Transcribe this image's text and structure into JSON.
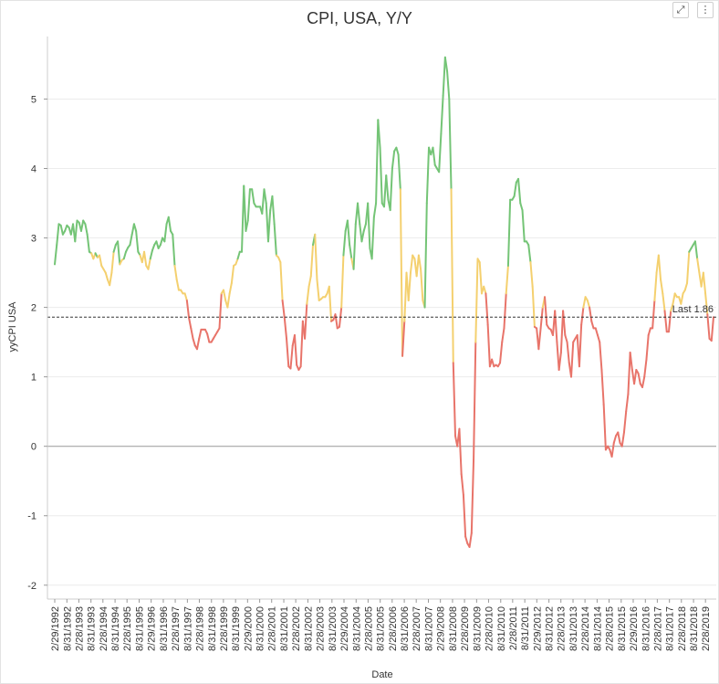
{
  "chart_data": {
    "type": "line",
    "title": "CPI, USA, Y/Y",
    "xlabel": "Date",
    "ylabel": "yyCPI USA",
    "ylim": [
      -2.2,
      5.9
    ],
    "yticks": [
      -2,
      -1,
      0,
      1,
      2,
      3,
      4,
      5
    ],
    "x_tick_labels": [
      "2/29/1992",
      "8/31/1992",
      "2/28/1993",
      "8/31/1993",
      "2/28/1994",
      "8/31/1994",
      "2/28/1995",
      "8/31/1995",
      "2/29/1996",
      "8/31/1996",
      "2/28/1997",
      "8/31/1997",
      "2/28/1998",
      "8/31/1998",
      "2/28/1999",
      "8/31/1999",
      "2/29/2000",
      "8/31/2000",
      "2/28/2001",
      "8/31/2001",
      "2/28/2002",
      "8/31/2002",
      "2/28/2003",
      "8/31/2003",
      "2/29/2004",
      "8/31/2004",
      "2/28/2005",
      "8/31/2005",
      "2/28/2006",
      "8/31/2006",
      "2/28/2007",
      "8/31/2007",
      "2/29/2008",
      "8/31/2008",
      "2/28/2009",
      "8/31/2009",
      "2/28/2010",
      "8/31/2010",
      "2/28/2011",
      "8/31/2011",
      "2/29/2012",
      "8/31/2012",
      "2/28/2013",
      "8/31/2013",
      "2/28/2014",
      "8/31/2014",
      "2/28/2015",
      "8/31/2015",
      "2/29/2016",
      "8/31/2016",
      "2/28/2017",
      "8/31/2017",
      "2/28/2018",
      "8/31/2018",
      "2/28/2019"
    ],
    "x_start": "1992-02-29",
    "x_end": "2019-06-30",
    "series": [
      {
        "values": [
          2.62,
          2.9,
          3.2,
          3.18,
          3.05,
          3.1,
          3.18,
          3.15,
          3.05,
          3.2,
          2.95,
          3.25,
          3.22,
          3.1,
          3.25,
          3.2,
          3.05,
          2.8,
          2.78,
          2.7,
          2.78,
          2.72,
          2.75,
          2.6,
          2.55,
          2.5,
          2.4,
          2.32,
          2.5,
          2.8,
          2.9,
          2.95,
          2.62,
          2.68,
          2.7,
          2.8,
          2.86,
          2.9,
          3.05,
          3.2,
          3.1,
          2.8,
          2.75,
          2.65,
          2.8,
          2.6,
          2.55,
          2.7,
          2.82,
          2.9,
          2.95,
          2.85,
          2.9,
          3.0,
          2.95,
          3.2,
          3.3,
          3.1,
          3.05,
          2.6,
          2.4,
          2.25,
          2.25,
          2.2,
          2.2,
          2.1,
          1.85,
          1.7,
          1.55,
          1.45,
          1.4,
          1.55,
          1.68,
          1.68,
          1.68,
          1.62,
          1.5,
          1.5,
          1.55,
          1.6,
          1.65,
          1.7,
          2.2,
          2.25,
          2.1,
          2.0,
          2.2,
          2.35,
          2.6,
          2.62,
          2.7,
          2.8,
          2.8,
          3.75,
          3.1,
          3.25,
          3.7,
          3.7,
          3.5,
          3.45,
          3.45,
          3.45,
          3.35,
          3.7,
          3.5,
          2.95,
          3.4,
          3.6,
          3.2,
          2.75,
          2.72,
          2.65,
          2.1,
          1.85,
          1.55,
          1.15,
          1.12,
          1.45,
          1.6,
          1.17,
          1.1,
          1.15,
          1.8,
          1.55,
          2.05,
          2.3,
          2.45,
          2.9,
          3.05,
          2.4,
          2.1,
          2.12,
          2.15,
          2.15,
          2.2,
          2.3,
          1.8,
          1.82,
          1.9,
          1.7,
          1.72,
          2.0,
          2.75,
          3.1,
          3.25,
          2.9,
          2.7,
          2.55,
          3.2,
          3.5,
          3.2,
          2.95,
          3.1,
          3.2,
          3.5,
          2.85,
          2.7,
          3.3,
          3.5,
          4.7,
          4.3,
          3.5,
          3.45,
          3.9,
          3.55,
          3.4,
          4.0,
          4.25,
          4.3,
          4.2,
          3.7,
          1.3,
          1.8,
          2.5,
          2.1,
          2.5,
          2.75,
          2.7,
          2.45,
          2.75,
          2.55,
          2.1,
          2.0,
          3.5,
          4.3,
          4.2,
          4.3,
          4.05,
          4.0,
          3.95,
          4.5,
          5.05,
          5.6,
          5.4,
          5.0,
          3.7,
          1.2,
          0.15,
          0.0,
          0.25,
          -0.4,
          -0.7,
          -1.3,
          -1.4,
          -1.45,
          -1.25,
          -0.2,
          1.5,
          2.7,
          2.65,
          2.2,
          2.3,
          2.2,
          1.75,
          1.15,
          1.25,
          1.15,
          1.17,
          1.15,
          1.2,
          1.5,
          1.7,
          2.2,
          2.6,
          3.55,
          3.55,
          3.6,
          3.8,
          3.85,
          3.5,
          3.4,
          2.95,
          2.95,
          2.9,
          2.65,
          2.3,
          1.72,
          1.7,
          1.4,
          1.7,
          2.0,
          2.15,
          1.75,
          1.7,
          1.68,
          1.6,
          1.95,
          1.5,
          1.1,
          1.35,
          1.95,
          1.6,
          1.5,
          1.2,
          1.0,
          1.5,
          1.55,
          1.6,
          1.15,
          1.75,
          2.0,
          2.15,
          2.1,
          2.0,
          1.8,
          1.7,
          1.7,
          1.6,
          1.5,
          1.1,
          0.6,
          -0.05,
          0.0,
          -0.05,
          -0.15,
          0.05,
          0.15,
          0.2,
          0.05,
          0.0,
          0.2,
          0.5,
          0.75,
          1.35,
          1.1,
          0.9,
          1.1,
          1.05,
          0.9,
          0.85,
          1.0,
          1.25,
          1.6,
          1.7,
          1.7,
          2.1,
          2.5,
          2.75,
          2.4,
          2.2,
          1.95,
          1.65,
          1.65,
          1.95,
          2.05,
          2.2,
          2.15,
          2.15,
          2.05,
          2.2,
          2.25,
          2.35,
          2.8,
          2.85,
          2.9,
          2.95,
          2.7,
          2.5,
          2.3,
          2.5,
          2.2,
          1.9,
          1.55,
          1.52,
          1.86
        ]
      }
    ],
    "reference_line": {
      "value": 1.86,
      "label": "Last 1.86"
    },
    "zero_line": 0,
    "colors": {
      "high": "#74c476",
      "mid": "#f4d06f",
      "low": "#e8746a",
      "grid": "#ececec",
      "zero": "#999999",
      "ref": "#333333"
    },
    "color_thresholds": {
      "high_above": 2.75,
      "low_below": 2.0
    },
    "grid": true,
    "legend": "none"
  },
  "controls": {
    "expand_icon": "⤢",
    "menu_icon": "⋮"
  }
}
